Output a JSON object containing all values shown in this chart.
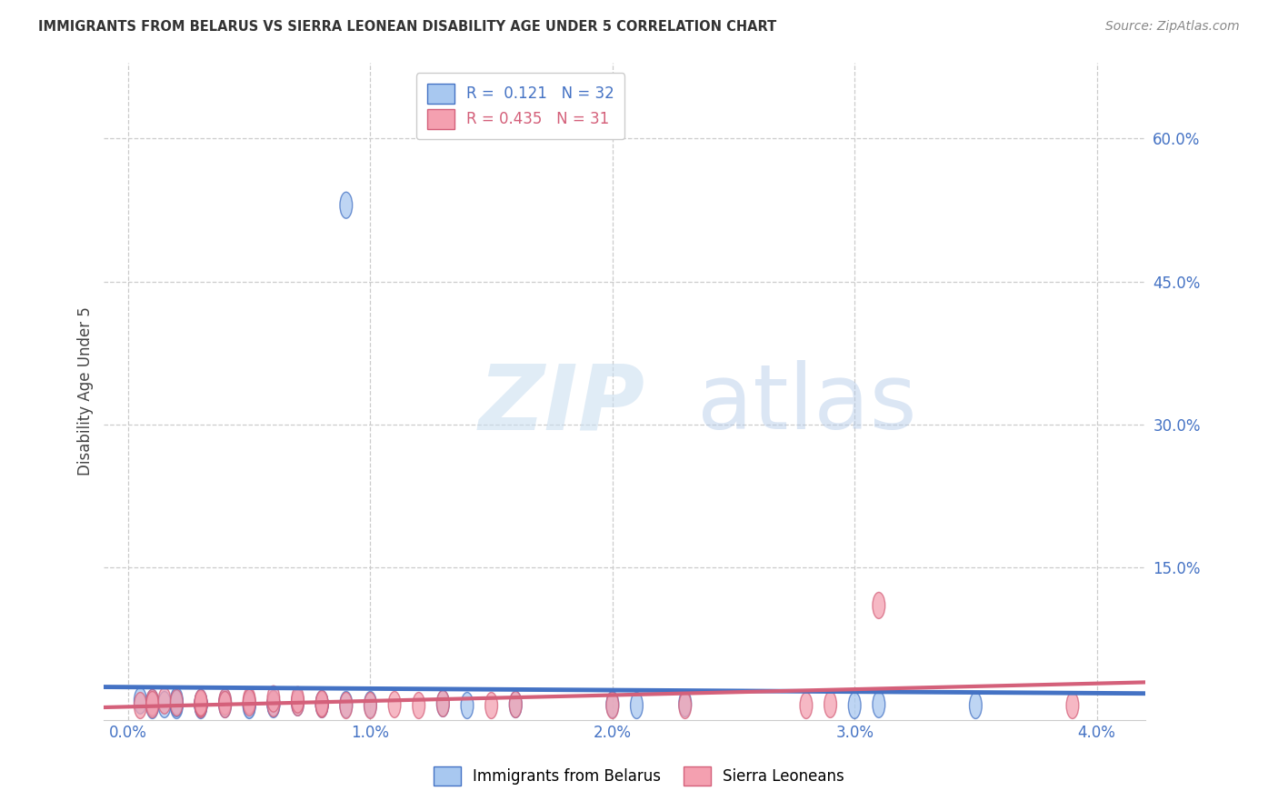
{
  "title": "IMMIGRANTS FROM BELARUS VS SIERRA LEONEAN DISABILITY AGE UNDER 5 CORRELATION CHART",
  "source": "Source: ZipAtlas.com",
  "ylabel": "Disability Age Under 5",
  "x_tick_labels": [
    "0.0%",
    "1.0%",
    "2.0%",
    "3.0%",
    "4.0%"
  ],
  "x_tick_values": [
    0.0,
    0.01,
    0.02,
    0.03,
    0.04
  ],
  "y_tick_labels": [
    "15.0%",
    "30.0%",
    "45.0%",
    "60.0%"
  ],
  "y_tick_values": [
    0.15,
    0.3,
    0.45,
    0.6
  ],
  "xlim": [
    -0.001,
    0.042
  ],
  "ylim": [
    -0.01,
    0.68
  ],
  "legend1_label": "Immigrants from Belarus",
  "legend2_label": "Sierra Leoneans",
  "r1": 0.121,
  "n1": 32,
  "r2": 0.435,
  "n2": 31,
  "color1": "#a8c8f0",
  "color2": "#f4a0b0",
  "line_color1": "#4472c4",
  "line_color2": "#d4607a",
  "watermark_zip": "ZIP",
  "watermark_atlas": "atlas",
  "background_color": "#ffffff",
  "scatter1_x": [
    0.0005,
    0.001,
    0.001,
    0.0015,
    0.002,
    0.002,
    0.002,
    0.003,
    0.003,
    0.003,
    0.003,
    0.004,
    0.004,
    0.005,
    0.005,
    0.006,
    0.006,
    0.007,
    0.008,
    0.008,
    0.009,
    0.009,
    0.01,
    0.013,
    0.014,
    0.016,
    0.02,
    0.021,
    0.023,
    0.03,
    0.031,
    0.035
  ],
  "scatter1_y": [
    0.01,
    0.005,
    0.008,
    0.006,
    0.005,
    0.01,
    0.007,
    0.005,
    0.008,
    0.006,
    0.007,
    0.008,
    0.006,
    0.006,
    0.005,
    0.007,
    0.006,
    0.008,
    0.007,
    0.006,
    0.006,
    0.53,
    0.006,
    0.007,
    0.005,
    0.006,
    0.006,
    0.005,
    0.007,
    0.005,
    0.006,
    0.005
  ],
  "scatter2_x": [
    0.0005,
    0.001,
    0.001,
    0.0015,
    0.002,
    0.003,
    0.003,
    0.003,
    0.004,
    0.004,
    0.005,
    0.005,
    0.006,
    0.006,
    0.007,
    0.007,
    0.008,
    0.008,
    0.009,
    0.01,
    0.011,
    0.012,
    0.013,
    0.015,
    0.016,
    0.02,
    0.023,
    0.028,
    0.029,
    0.031,
    0.039
  ],
  "scatter2_y": [
    0.005,
    0.008,
    0.006,
    0.01,
    0.008,
    0.006,
    0.007,
    0.008,
    0.009,
    0.006,
    0.01,
    0.008,
    0.007,
    0.012,
    0.008,
    0.011,
    0.006,
    0.007,
    0.005,
    0.005,
    0.006,
    0.005,
    0.007,
    0.005,
    0.006,
    0.005,
    0.005,
    0.005,
    0.006,
    0.11,
    0.005
  ]
}
